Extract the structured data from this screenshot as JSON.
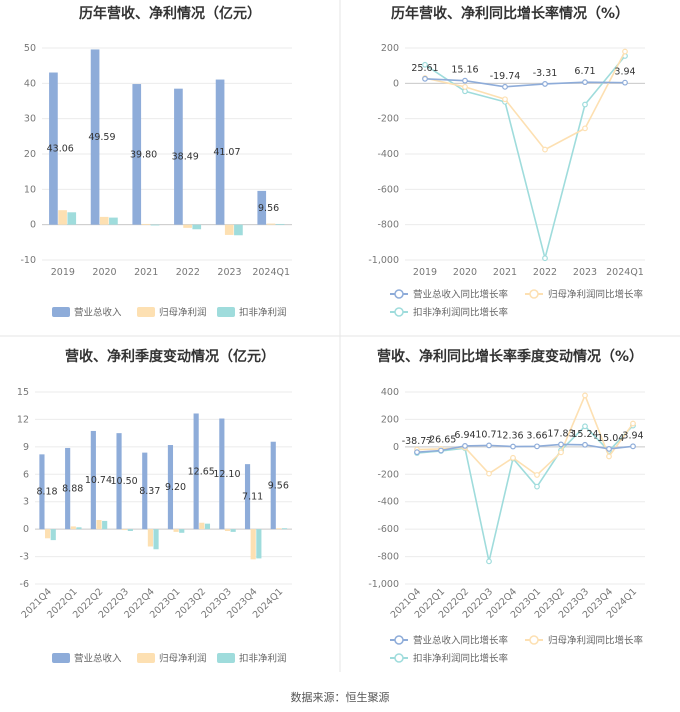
{
  "footer": {
    "source": "数据来源：恒生聚源"
  },
  "colors": {
    "revenue": "#8eacd9",
    "net_profit": "#fde0b2",
    "net_profit_excl": "#9fdcdc",
    "grid": "#ebebeb",
    "axis": "#cccccc"
  },
  "chart_data": [
    {
      "type": "bar",
      "title": "历年营收、净利情况（亿元）",
      "categories": [
        "2019",
        "2020",
        "2021",
        "2022",
        "2023",
        "2024Q1"
      ],
      "ylim": [
        -10,
        50
      ],
      "yticks": [
        -10,
        0,
        10,
        20,
        30,
        40,
        50
      ],
      "grid": true,
      "legend_position": "bottom",
      "series": [
        {
          "name": "营业总收入",
          "values": [
            43.06,
            49.59,
            39.8,
            38.49,
            41.07,
            9.56
          ],
          "labels": [
            "43.06",
            "49.59",
            "39.80",
            "38.49",
            "41.07",
            "9.56"
          ]
        },
        {
          "name": "归母净利润",
          "values": [
            4.1,
            2.2,
            0.2,
            -0.9,
            -2.9,
            0.3
          ]
        },
        {
          "name": "扣非净利润",
          "values": [
            3.5,
            2.0,
            -0.2,
            -1.3,
            -3.0,
            0.2
          ]
        }
      ]
    },
    {
      "type": "line",
      "title": "历年营收、净利同比增长率情况（%）",
      "categories": [
        "2019",
        "2020",
        "2021",
        "2022",
        "2023",
        "2024Q1"
      ],
      "ylim": [
        -1000,
        200
      ],
      "yticks": [
        -1000,
        -800,
        -600,
        -400,
        -200,
        0,
        200
      ],
      "ytick_labels": [
        "-1,000",
        "-800",
        "-600",
        "-400",
        "-200",
        "0",
        "200"
      ],
      "grid": true,
      "legend_position": "bottom",
      "series": [
        {
          "name": "营业总收入同比增长率",
          "values": [
            25.61,
            15.16,
            -19.74,
            -3.31,
            6.71,
            3.94
          ],
          "labels": [
            "25.61",
            "15.16",
            "-19.74",
            "-3.31",
            "6.71",
            "3.94"
          ]
        },
        {
          "name": "归母净利润同比增长率",
          "values": [
            30,
            -20,
            -90,
            -375,
            -255,
            180
          ]
        },
        {
          "name": "扣非净利润同比增长率",
          "values": [
            105,
            -45,
            -105,
            -990,
            -120,
            155
          ]
        }
      ]
    },
    {
      "type": "bar",
      "title": "营收、净利季度变动情况（亿元）",
      "categories": [
        "2021Q4",
        "2022Q1",
        "2022Q2",
        "2022Q3",
        "2022Q4",
        "2023Q1",
        "2023Q2",
        "2023Q3",
        "2023Q4",
        "2024Q1"
      ],
      "ylim": [
        -6,
        15
      ],
      "yticks": [
        -6,
        -3,
        0,
        3,
        6,
        9,
        12,
        15
      ],
      "grid": true,
      "legend_position": "bottom",
      "series": [
        {
          "name": "营业总收入",
          "values": [
            8.18,
            8.88,
            10.74,
            10.5,
            8.37,
            9.2,
            12.65,
            12.1,
            7.11,
            9.56
          ],
          "labels": [
            "8.18",
            "8.88",
            "10.74",
            "10.50",
            "8.37",
            "9.20",
            "12.65",
            "12.10",
            "7.11",
            "9.56"
          ]
        },
        {
          "name": "归母净利润",
          "values": [
            -1.0,
            0.3,
            1.0,
            -0.1,
            -1.9,
            -0.3,
            0.7,
            -0.2,
            -3.3,
            0.1
          ]
        },
        {
          "name": "扣非净利润",
          "values": [
            -1.2,
            0.2,
            0.9,
            -0.2,
            -2.2,
            -0.4,
            0.6,
            -0.3,
            -3.2,
            0.1
          ]
        }
      ]
    },
    {
      "type": "line",
      "title": "营收、净利同比增长率季度变动情况（%）",
      "categories": [
        "2021Q4",
        "2022Q1",
        "2022Q2",
        "2022Q3",
        "2022Q4",
        "2023Q1",
        "2023Q2",
        "2023Q3",
        "2023Q4",
        "2024Q1"
      ],
      "ylim": [
        -1000,
        400
      ],
      "yticks": [
        -1000,
        -800,
        -600,
        -400,
        -200,
        0,
        200,
        400
      ],
      "ytick_labels": [
        "-1,000",
        "-800",
        "-600",
        "-400",
        "-200",
        "0",
        "200",
        "400"
      ],
      "grid": true,
      "legend_position": "bottom",
      "series": [
        {
          "name": "营业总收入同比增长率",
          "values": [
            -38.77,
            -26.65,
            6.94,
            10.71,
            2.36,
            3.66,
            17.83,
            15.24,
            -15.04,
            3.94
          ],
          "labels": [
            "-38.77",
            "-26.65",
            "6.94",
            "10.71",
            "2.36",
            "3.66",
            "17.83",
            "15.24",
            "-15.04",
            "3.94"
          ]
        },
        {
          "name": "归母净利润同比增长率",
          "values": [
            -20,
            -15,
            -5,
            -195,
            -80,
            -205,
            -40,
            375,
            -70,
            170
          ]
        },
        {
          "name": "扣非净利润同比增长率",
          "values": [
            -45,
            -30,
            -10,
            -835,
            -85,
            -290,
            -25,
            150,
            -30,
            155
          ]
        }
      ]
    }
  ]
}
